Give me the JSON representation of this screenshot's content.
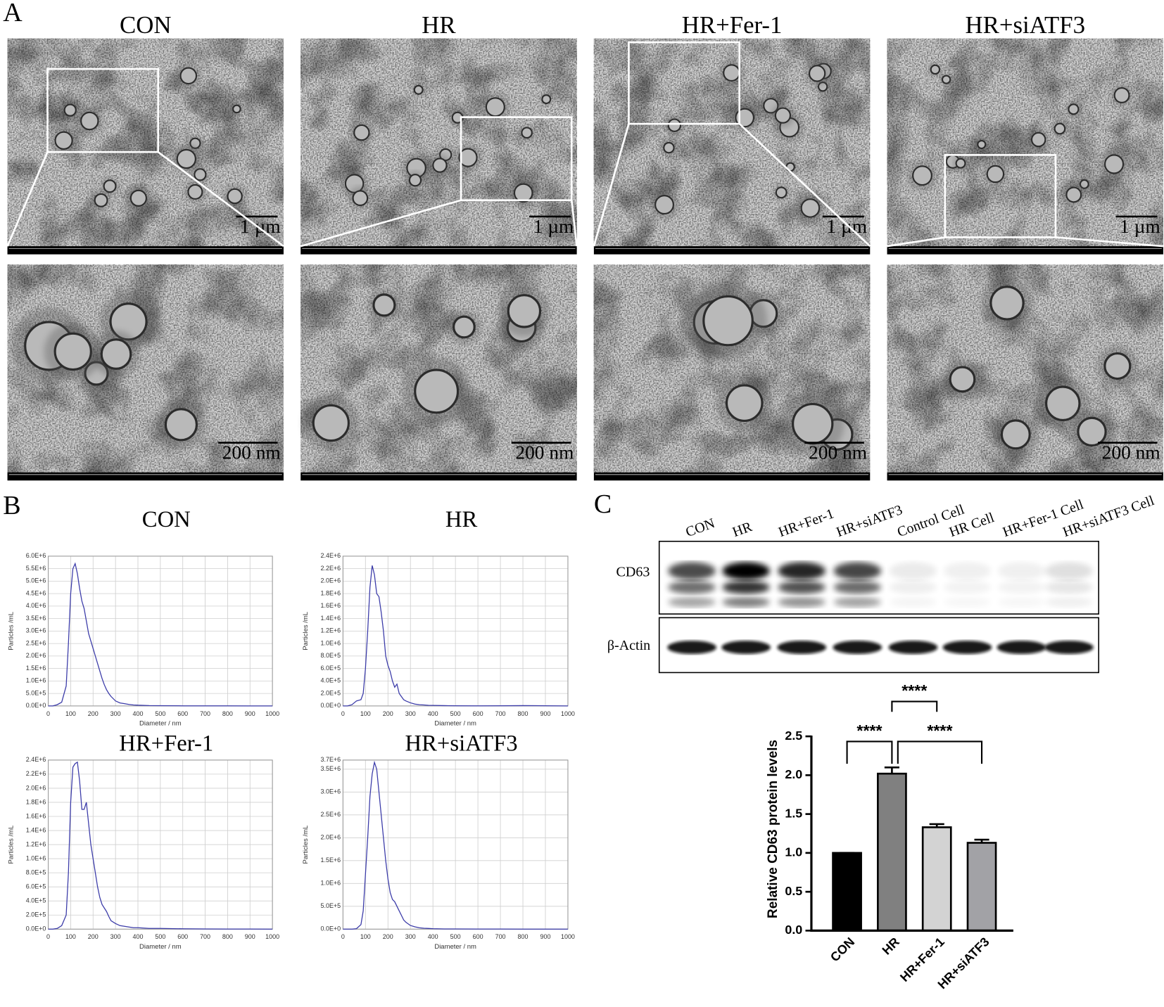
{
  "panel_labels": [
    "A",
    "B",
    "C"
  ],
  "tem": {
    "groups": [
      "CON",
      "HR",
      "HR+Fer-1",
      "HR+siATF3"
    ],
    "scale_top": "1 µm",
    "scale_bottom": "200 nm"
  },
  "blot": {
    "lanes": [
      "CON",
      "HR",
      "HR+Fer-1",
      "HR+siATF3",
      "Control Cell",
      "HR Cell",
      "HR+Fer-1 Cell",
      "HR+siATF3 Cell"
    ],
    "rows": [
      "CD63",
      "β-Actin"
    ]
  },
  "chart_data": [
    {
      "type": "line",
      "title": "CON",
      "xlabel": "Diameter / nm",
      "ylabel": "Particles /mL",
      "color": "#3a3aa8",
      "grid": true,
      "x": [
        0,
        20,
        40,
        60,
        80,
        90,
        100,
        110,
        120,
        130,
        140,
        150,
        160,
        170,
        180,
        190,
        200,
        210,
        220,
        230,
        240,
        250,
        260,
        270,
        280,
        300,
        320,
        340,
        360,
        380,
        400,
        450,
        500,
        600,
        700,
        800,
        900,
        1000
      ],
      "values": [
        0,
        0,
        50000,
        150000,
        800000,
        2500000,
        4500000,
        5500000,
        5700000,
        5300000,
        4700000,
        4200000,
        3900000,
        3400000,
        2900000,
        2600000,
        2300000,
        2000000,
        1700000,
        1400000,
        1100000,
        850000,
        650000,
        500000,
        380000,
        200000,
        120000,
        90000,
        60000,
        40000,
        30000,
        15000,
        10000,
        5000,
        3000,
        2000,
        1000,
        0
      ],
      "xlim": [
        0,
        1000
      ],
      "xticks": [
        0,
        100,
        200,
        300,
        400,
        500,
        600,
        700,
        800,
        900,
        1000
      ],
      "ylim": [
        0,
        6000000
      ],
      "yticks": [
        {
          "value": 0,
          "label": "0.0E+0"
        },
        {
          "value": 500000,
          "label": "5.0E+5"
        },
        {
          "value": 1000000,
          "label": "1.0E+6"
        },
        {
          "value": 1500000,
          "label": "1.5E+6"
        },
        {
          "value": 2000000,
          "label": "2.0E+6"
        },
        {
          "value": 2500000,
          "label": "2.5E+6"
        },
        {
          "value": 3000000,
          "label": "3.0E+6"
        },
        {
          "value": 3500000,
          "label": "3.5E+6"
        },
        {
          "value": 4000000,
          "label": "4.0E+6"
        },
        {
          "value": 4500000,
          "label": "4.5E+6"
        },
        {
          "value": 5000000,
          "label": "5.0E+6"
        },
        {
          "value": 5500000,
          "label": "5.5E+6"
        },
        {
          "value": 6000000,
          "label": "6.0E+6"
        }
      ]
    },
    {
      "type": "line",
      "title": "HR",
      "xlabel": "Diameter / nm",
      "ylabel": "Particles /mL",
      "color": "#3a3aa8",
      "grid": true,
      "x": [
        0,
        20,
        40,
        60,
        80,
        90,
        100,
        110,
        120,
        130,
        140,
        150,
        160,
        170,
        180,
        190,
        200,
        210,
        220,
        230,
        240,
        250,
        260,
        270,
        280,
        300,
        320,
        340,
        360,
        380,
        400,
        450,
        500,
        600,
        700,
        800,
        900,
        1000
      ],
      "values": [
        0,
        0,
        20000,
        80000,
        100000,
        200000,
        600000,
        1200000,
        1900000,
        2250000,
        2100000,
        1800000,
        1750000,
        1500000,
        1200000,
        800000,
        650000,
        550000,
        400000,
        300000,
        350000,
        200000,
        150000,
        100000,
        80000,
        50000,
        30000,
        20000,
        15000,
        10000,
        8000,
        5000,
        3000,
        2000,
        3000,
        5000,
        3000,
        0
      ],
      "xlim": [
        0,
        1000
      ],
      "xticks": [
        0,
        100,
        200,
        300,
        400,
        500,
        600,
        700,
        800,
        900,
        1000
      ],
      "ylim": [
        0,
        2400000
      ],
      "yticks": [
        {
          "value": 0,
          "label": "0.0E+0"
        },
        {
          "value": 200000,
          "label": "2.0E+5"
        },
        {
          "value": 400000,
          "label": "4.0E+5"
        },
        {
          "value": 600000,
          "label": "6.0E+5"
        },
        {
          "value": 800000,
          "label": "8.0E+5"
        },
        {
          "value": 1000000,
          "label": "1.0E+6"
        },
        {
          "value": 1200000,
          "label": "1.2E+6"
        },
        {
          "value": 1400000,
          "label": "1.4E+6"
        },
        {
          "value": 1600000,
          "label": "1.6E+6"
        },
        {
          "value": 1800000,
          "label": "1.8E+6"
        },
        {
          "value": 2000000,
          "label": "2.0E+6"
        },
        {
          "value": 2200000,
          "label": "2.2E+6"
        },
        {
          "value": 2400000,
          "label": "2.4E+6"
        }
      ]
    },
    {
      "type": "line",
      "title": "HR+Fer-1",
      "xlabel": "Diameter / nm",
      "ylabel": "Particles /mL",
      "color": "#3a3aa8",
      "grid": true,
      "x": [
        0,
        20,
        40,
        60,
        80,
        90,
        100,
        110,
        120,
        130,
        140,
        150,
        160,
        170,
        180,
        190,
        200,
        210,
        220,
        230,
        240,
        250,
        260,
        270,
        280,
        300,
        320,
        340,
        360,
        380,
        400,
        450,
        500,
        600,
        700,
        800,
        900,
        1000
      ],
      "values": [
        0,
        0,
        10000,
        50000,
        200000,
        800000,
        1800000,
        2300000,
        2350000,
        2370000,
        2100000,
        1700000,
        1700000,
        1800000,
        1500000,
        1200000,
        1000000,
        800000,
        600000,
        450000,
        350000,
        300000,
        250000,
        180000,
        120000,
        80000,
        50000,
        40000,
        30000,
        20000,
        20000,
        10000,
        10000,
        5000,
        3000,
        2000,
        2000,
        0
      ],
      "xlim": [
        0,
        1000
      ],
      "xticks": [
        0,
        100,
        200,
        300,
        400,
        500,
        600,
        700,
        800,
        900,
        1000
      ],
      "ylim": [
        0,
        2400000
      ],
      "yticks": [
        {
          "value": 0,
          "label": "0.0E+0"
        },
        {
          "value": 200000,
          "label": "2.0E+5"
        },
        {
          "value": 400000,
          "label": "4.0E+5"
        },
        {
          "value": 600000,
          "label": "6.0E+5"
        },
        {
          "value": 800000,
          "label": "8.0E+5"
        },
        {
          "value": 1000000,
          "label": "1.0E+6"
        },
        {
          "value": 1200000,
          "label": "1.2E+6"
        },
        {
          "value": 1400000,
          "label": "1.4E+6"
        },
        {
          "value": 1600000,
          "label": "1.6E+6"
        },
        {
          "value": 1800000,
          "label": "1.8E+6"
        },
        {
          "value": 2000000,
          "label": "2.0E+6"
        },
        {
          "value": 2200000,
          "label": "2.2E+6"
        },
        {
          "value": 2400000,
          "label": "2.4E+6"
        }
      ]
    },
    {
      "type": "line",
      "title": "HR+siATF3",
      "xlabel": "Diameter / nm",
      "ylabel": "Particles /mL",
      "color": "#3a3aa8",
      "grid": true,
      "x": [
        0,
        20,
        40,
        60,
        80,
        90,
        100,
        110,
        120,
        130,
        140,
        150,
        160,
        170,
        180,
        190,
        200,
        210,
        220,
        230,
        240,
        250,
        260,
        270,
        280,
        300,
        320,
        340,
        360,
        380,
        400,
        450,
        500,
        600,
        700,
        800,
        900,
        1000
      ],
      "values": [
        0,
        0,
        0,
        10000,
        100000,
        400000,
        1200000,
        2000000,
        2900000,
        3400000,
        3650000,
        3500000,
        3000000,
        2500000,
        2000000,
        1500000,
        1100000,
        800000,
        650000,
        600000,
        500000,
        400000,
        300000,
        200000,
        150000,
        80000,
        50000,
        30000,
        20000,
        15000,
        10000,
        5000,
        5000,
        3000,
        2000,
        1000,
        1000,
        0
      ],
      "xlim": [
        0,
        1000
      ],
      "xticks": [
        0,
        100,
        200,
        300,
        400,
        500,
        600,
        700,
        800,
        900,
        1000
      ],
      "ylim": [
        0,
        3700000
      ],
      "yticks": [
        {
          "value": 0,
          "label": "0.0E+0"
        },
        {
          "value": 500000,
          "label": "5.0E+5"
        },
        {
          "value": 1000000,
          "label": "1.0E+6"
        },
        {
          "value": 1500000,
          "label": "1.5E+6"
        },
        {
          "value": 2000000,
          "label": "2.0E+6"
        },
        {
          "value": 2500000,
          "label": "2.5E+6"
        },
        {
          "value": 3000000,
          "label": "3.0E+6"
        },
        {
          "value": 3500000,
          "label": "3.5E+6"
        },
        {
          "value": 3700000,
          "label": "3.7E+6"
        }
      ]
    },
    {
      "type": "bar",
      "ylabel": "Relative CD63 protein levels",
      "categories": [
        "CON",
        "HR",
        "HR+Fer-1",
        "HR+siATF3"
      ],
      "values": [
        1.0,
        2.02,
        1.33,
        1.13
      ],
      "errors": [
        0,
        0.08,
        0.04,
        0.04
      ],
      "colors": [
        "#000000",
        "#808080",
        "#d3d3d3",
        "#a2a2a6"
      ],
      "ylim": [
        0,
        2.5
      ],
      "yticks": [
        {
          "value": 0,
          "label": "0.0"
        },
        0.5,
        {
          "value": 1,
          "label": "1.0"
        },
        1.5,
        {
          "value": 2,
          "label": "2.0"
        },
        2.5
      ],
      "annotations": [
        {
          "text": "****",
          "pair": [
            0,
            1
          ]
        },
        {
          "text": "****",
          "pair": [
            1,
            3
          ]
        },
        {
          "text": "****",
          "pair": [
            1,
            2
          ]
        }
      ]
    }
  ]
}
